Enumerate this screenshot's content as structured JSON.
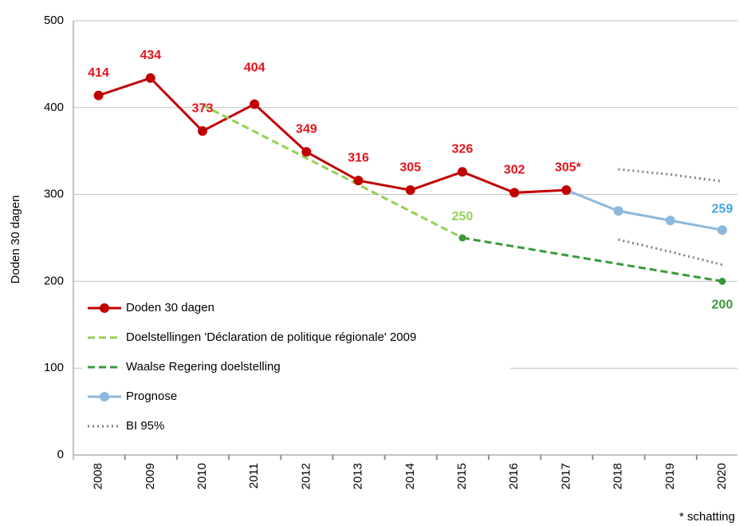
{
  "chart_data": {
    "type": "line",
    "y_label": "Doden 30 dagen",
    "footnote": "* schatting",
    "categories": [
      "2008",
      "2009",
      "2010",
      "2011",
      "2012",
      "2013",
      "2014",
      "2015",
      "2016",
      "2017",
      "2018",
      "2019",
      "2020"
    ],
    "ylim": [
      0,
      500
    ],
    "yticks": [
      0,
      100,
      200,
      300,
      400,
      500
    ],
    "grid": true,
    "series": [
      {
        "name": "Doden 30 dagen",
        "color": "#c00000",
        "label_color": "#e3131b",
        "style": "solid",
        "markers": "all",
        "values": [
          414,
          434,
          373,
          404,
          349,
          316,
          305,
          326,
          302,
          305,
          null,
          null,
          null
        ],
        "value_labels": [
          "414",
          "434",
          "373",
          "404",
          "349",
          "316",
          "305",
          "326",
          "302",
          "305*",
          null,
          null,
          null
        ]
      },
      {
        "name": "Doelstellingen 'Déclaration de politique régionale' 2009",
        "color": "#92d050",
        "label_color": "#92d050",
        "style": "dashed",
        "markers": "labelled",
        "values": [
          null,
          null,
          403,
          372.4,
          341.8,
          311.2,
          280.6,
          250,
          null,
          null,
          null,
          null,
          null
        ],
        "value_labels": [
          null,
          null,
          null,
          null,
          null,
          null,
          null,
          "250",
          null,
          null,
          null,
          null,
          null
        ]
      },
      {
        "name": "Waalse Regering doelstelling",
        "color": "#3a9a3a",
        "label_color": "#3a9a3a",
        "style": "dashed",
        "markers": "ends",
        "values": [
          null,
          null,
          null,
          null,
          null,
          null,
          null,
          250,
          240,
          230,
          220,
          210,
          200
        ],
        "value_labels": [
          null,
          null,
          null,
          null,
          null,
          null,
          null,
          null,
          null,
          null,
          null,
          null,
          "200"
        ]
      },
      {
        "name": "Prognose",
        "color": "#8db8dd",
        "label_color": "#3ea4e0",
        "style": "solid",
        "markers": "after-first",
        "values": [
          null,
          null,
          null,
          null,
          null,
          null,
          null,
          null,
          null,
          305,
          281,
          270,
          259
        ],
        "value_labels": [
          null,
          null,
          null,
          null,
          null,
          null,
          null,
          null,
          null,
          null,
          null,
          null,
          "259"
        ]
      },
      {
        "name": "BI 95%",
        "color": "#808080",
        "style": "dotted",
        "markers": "none",
        "upper": [
          null,
          null,
          null,
          null,
          null,
          null,
          null,
          null,
          null,
          null,
          329,
          323,
          315
        ],
        "lower": [
          null,
          null,
          null,
          null,
          null,
          null,
          null,
          null,
          null,
          null,
          248,
          234,
          219
        ]
      }
    ]
  }
}
